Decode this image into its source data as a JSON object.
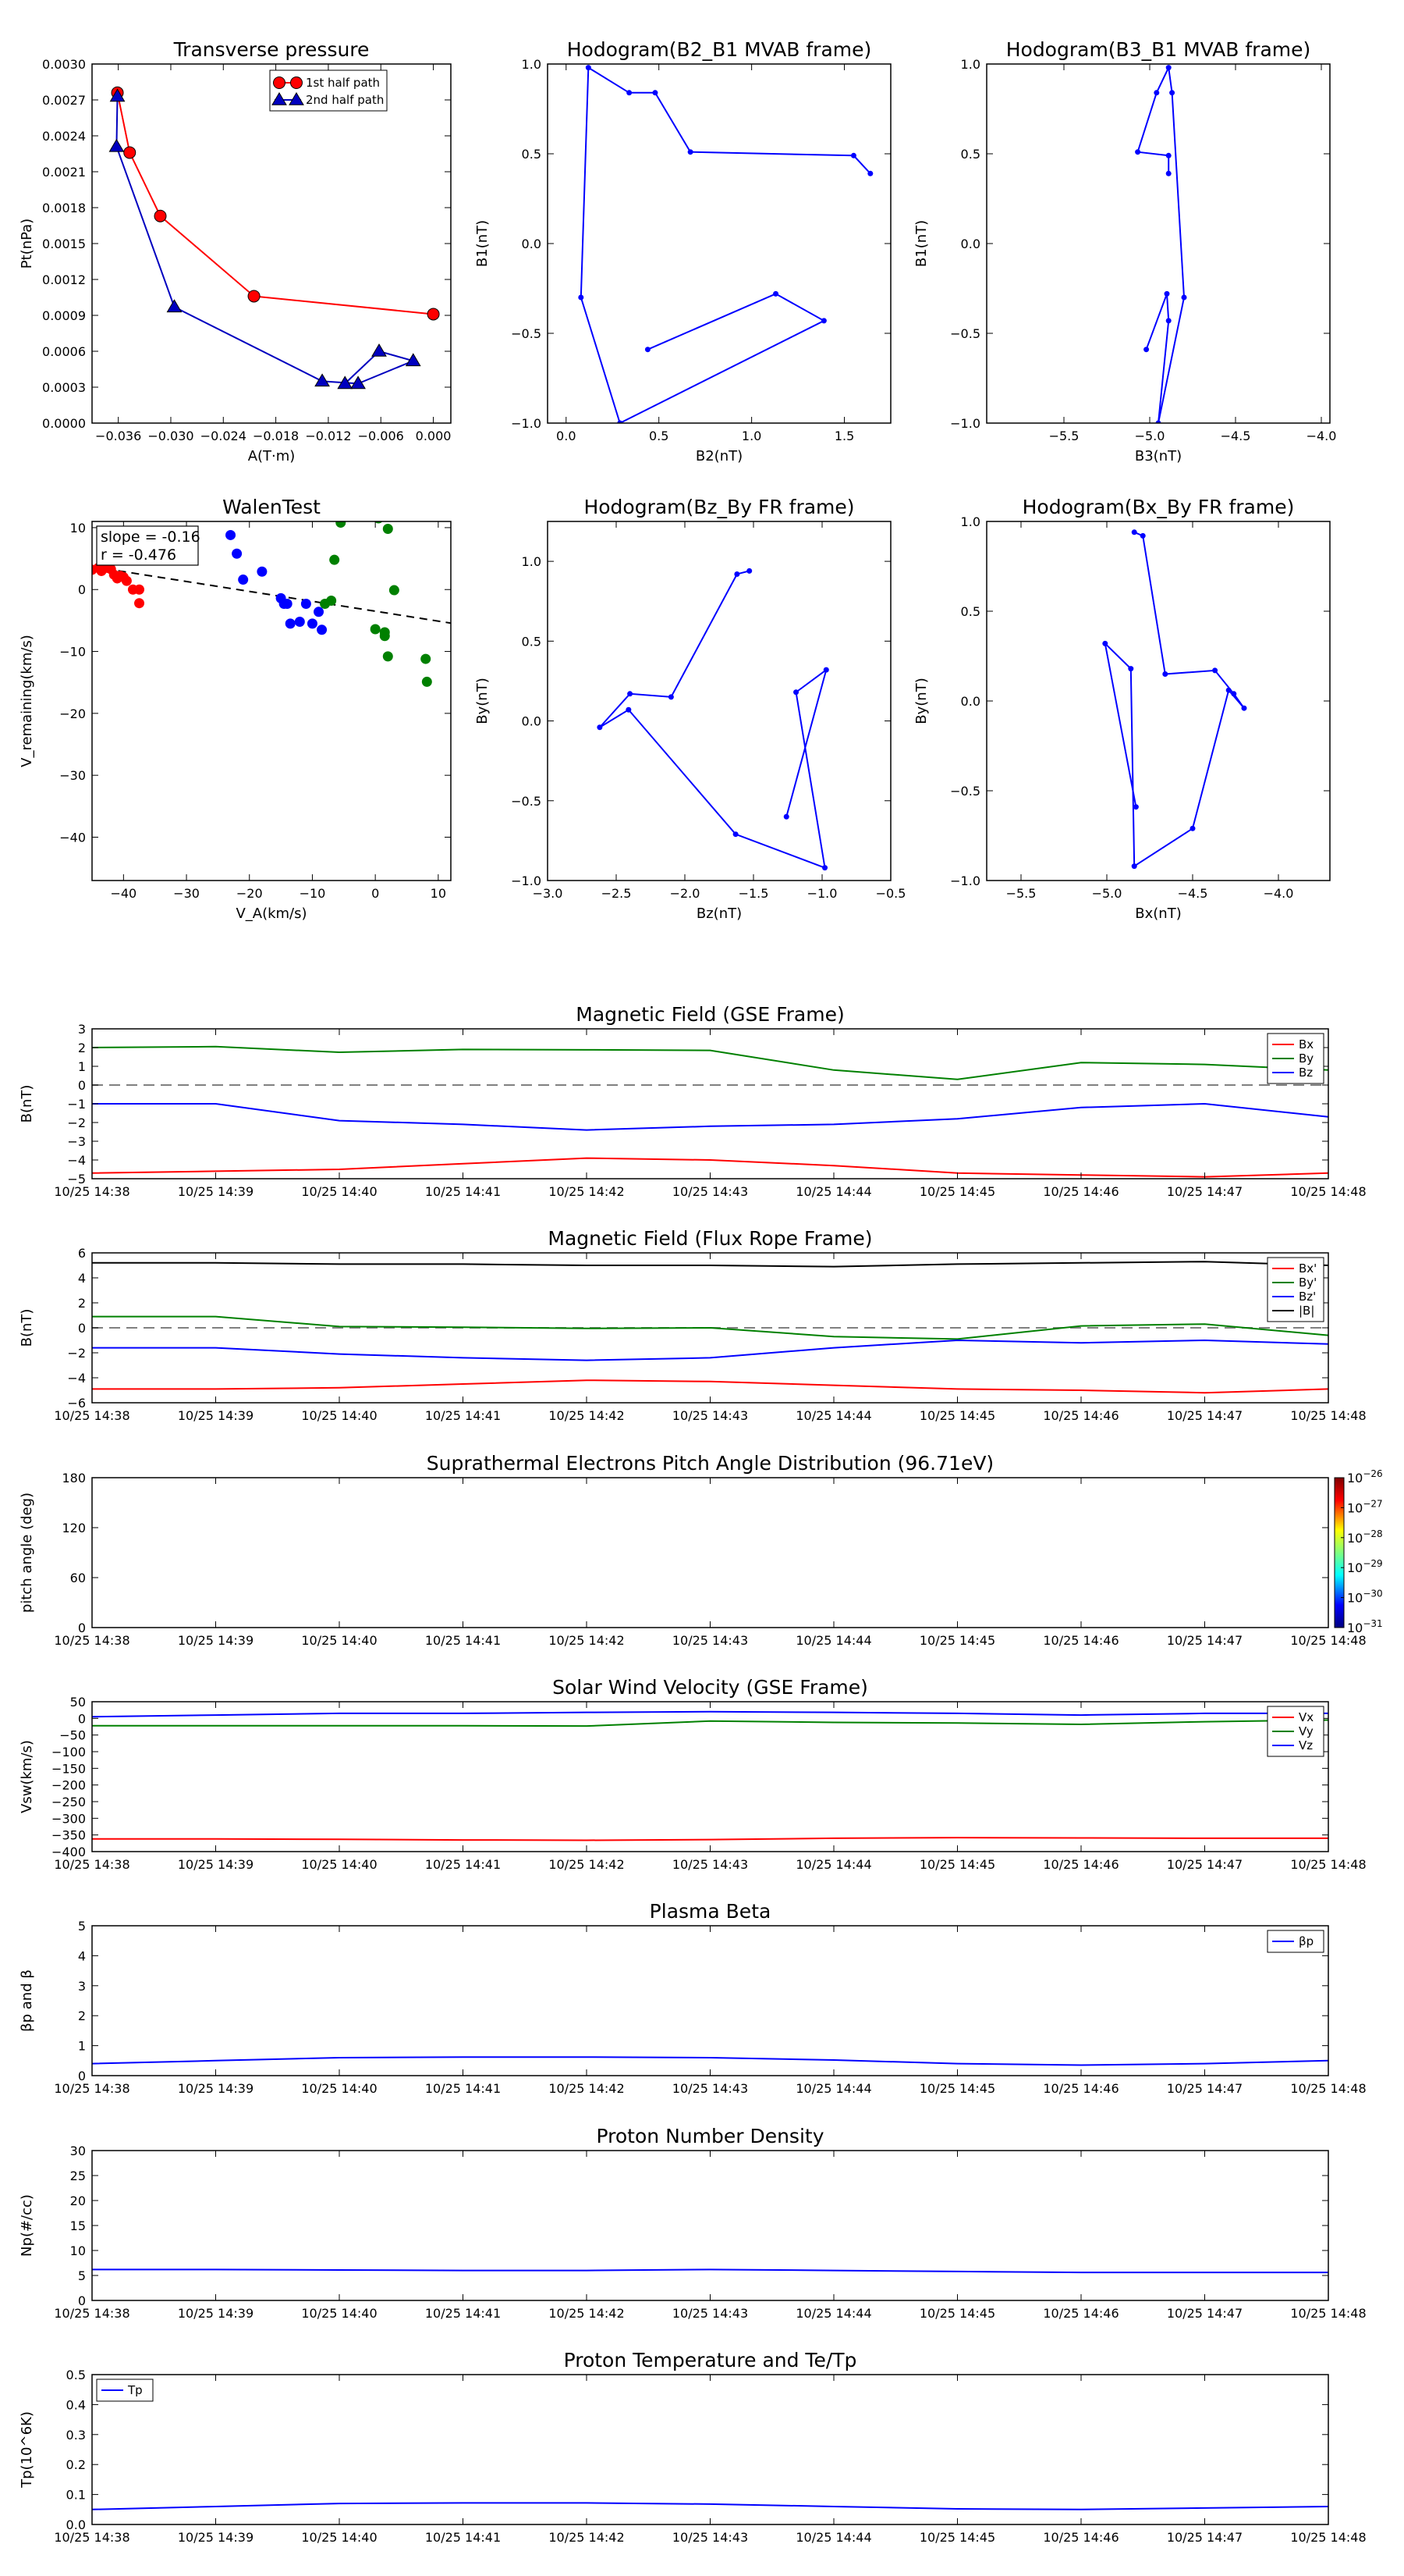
{
  "time_axis": {
    "ticks": [
      "10/25 14:38",
      "10/25 14:39",
      "10/25 14:40",
      "10/25 14:41",
      "10/25 14:42",
      "10/25 14:43",
      "10/25 14:44",
      "10/25 14:45",
      "10/25 14:46",
      "10/25 14:47",
      "10/25 14:48"
    ]
  },
  "chart_data": [
    {
      "id": "transverse_pressure",
      "type": "line",
      "title": "Transverse pressure",
      "xlabel": "A(T·m)",
      "ylabel": "Pt(nPa)",
      "xlim": [
        -0.039,
        0.002
      ],
      "ylim": [
        0,
        0.003
      ],
      "xticks": [
        -0.036,
        -0.03,
        -0.024,
        -0.018,
        -0.012,
        -0.006,
        0.0
      ],
      "xtick_labels": [
        "−0.036",
        "−0.030",
        "−0.024",
        "−0.018",
        "−0.012",
        "−0.006",
        "0.000"
      ],
      "yticks": [
        0,
        0.0003,
        0.0006,
        0.0009,
        0.0012,
        0.0015,
        0.0018,
        0.0021,
        0.0024,
        0.0027,
        0.003
      ],
      "ytick_labels": [
        "0.0000",
        "0.0003",
        "0.0006",
        "0.0009",
        "0.0012",
        "0.0015",
        "0.0018",
        "0.0021",
        "0.0024",
        "0.0027",
        "0.0030"
      ],
      "legend": "top-right",
      "series": [
        {
          "name": "1st half path",
          "color": "#ff0000",
          "marker": "circle",
          "x": [
            -0.0361,
            -0.0347,
            -0.0312,
            -0.0205,
            0.0
          ],
          "y": [
            0.00276,
            0.00226,
            0.00173,
            0.00106,
            0.00091
          ]
        },
        {
          "name": "2nd half path",
          "color": "#0000bf",
          "marker": "triangle",
          "x": [
            -0.0361,
            -0.0362,
            -0.0296,
            -0.0127,
            -0.0086,
            -0.0023,
            -0.0062,
            -0.0101
          ],
          "y": [
            0.00273,
            0.00231,
            0.00097,
            0.00035,
            0.00033,
            0.00052,
            0.0006,
            0.00033
          ]
        }
      ]
    },
    {
      "id": "hodo_b2_b1",
      "type": "line",
      "title": "Hodogram(B2_B1 MVAB frame)",
      "xlabel": "B2(nT)",
      "ylabel": "B1(nT)",
      "xlim": [
        -0.1,
        1.75
      ],
      "ylim": [
        -1.0,
        1.0
      ],
      "xticks": [
        0.0,
        0.5,
        1.0,
        1.5
      ],
      "xtick_labels": [
        "0.0",
        "0.5",
        "1.0",
        "1.5"
      ],
      "yticks": [
        -1.0,
        -0.5,
        0.0,
        0.5,
        1.0
      ],
      "ytick_labels": [
        "−1.0",
        "−0.5",
        "0.0",
        "0.5",
        "1.0"
      ],
      "series": [
        {
          "color": "#0000ff",
          "marker": "dot",
          "x": [
            1.64,
            1.55,
            0.67,
            0.48,
            0.34,
            0.12,
            0.08,
            0.29,
            1.39,
            1.13,
            0.44
          ],
          "y": [
            0.39,
            0.49,
            0.51,
            0.84,
            0.84,
            0.98,
            -0.3,
            -1.0,
            -0.43,
            -0.28,
            -0.59
          ]
        }
      ]
    },
    {
      "id": "hodo_b3_b1",
      "type": "line",
      "title": "Hodogram(B3_B1 MVAB frame)",
      "xlabel": "B3(nT)",
      "ylabel": "B1(nT)",
      "xlim": [
        -5.95,
        -3.95
      ],
      "ylim": [
        -1.0,
        1.0
      ],
      "xticks": [
        -5.5,
        -5.0,
        -4.5,
        -4.0
      ],
      "xtick_labels": [
        "−5.5",
        "−5.0",
        "−4.5",
        "−4.0"
      ],
      "yticks": [
        -1.0,
        -0.5,
        0.0,
        0.5,
        1.0
      ],
      "ytick_labels": [
        "−1.0",
        "−0.5",
        "0.0",
        "0.5",
        "1.0"
      ],
      "series": [
        {
          "color": "#0000ff",
          "marker": "dot",
          "x": [
            -4.89,
            -4.89,
            -5.07,
            -4.96,
            -4.89,
            -4.87,
            -4.8,
            -4.95,
            -4.89,
            -4.9,
            -5.02
          ],
          "y": [
            0.39,
            0.49,
            0.51,
            0.84,
            0.98,
            0.84,
            -0.3,
            -1.0,
            -0.43,
            -0.28,
            -0.59
          ]
        }
      ]
    },
    {
      "id": "walen_test",
      "type": "scatter",
      "title": "WalenTest",
      "xlabel": "V_A(km/s)",
      "ylabel": "V_remaining(km/s)",
      "xlim": [
        -45,
        12
      ],
      "ylim": [
        -47,
        11
      ],
      "xticks": [
        -40,
        -30,
        -20,
        -10,
        0,
        10
      ],
      "xtick_labels": [
        "−40",
        "−30",
        "−20",
        "−10",
        "0",
        "10"
      ],
      "yticks": [
        -40,
        -30,
        -20,
        -10,
        0,
        10
      ],
      "ytick_labels": [
        "−40",
        "−30",
        "−20",
        "−10",
        "0",
        "10"
      ],
      "annotation": [
        "slope = -0.16",
        "r = -0.476"
      ],
      "fit_line": {
        "slope": -0.16,
        "intercept": -3.5,
        "color": "#000000",
        "style": "dashed"
      },
      "series": [
        {
          "color": "#ff0000",
          "x": [
            -45,
            -44,
            -43.5,
            -43,
            -42.5,
            -42,
            -41.5,
            -41,
            -40.5,
            -40,
            -39.5,
            -38.5,
            -37.5,
            -37.5
          ],
          "y": [
            3.2,
            3.5,
            3.0,
            3.8,
            3.5,
            3.3,
            2.4,
            1.8,
            2.2,
            2.0,
            1.4,
            0.0,
            0.0,
            -2.2
          ]
        },
        {
          "color": "#0000ff",
          "x": [
            -23,
            -22,
            -21,
            -18,
            -15,
            -14.5,
            -14,
            -13.5,
            -12,
            -11,
            -10,
            -9,
            -8.5
          ],
          "y": [
            8.8,
            5.8,
            1.6,
            2.9,
            -1.4,
            -2.3,
            -2.3,
            -5.5,
            -5.2,
            -2.3,
            -5.5,
            -3.6,
            -6.5
          ]
        },
        {
          "color": "#008000",
          "x": [
            -6.5,
            -5.5,
            0.5,
            2,
            3,
            0,
            1.5,
            1.5,
            2,
            8,
            8.2,
            -8,
            -7
          ],
          "y": [
            4.8,
            10.8,
            11.5,
            9.8,
            -0.1,
            -6.4,
            -7.5,
            -6.9,
            -10.8,
            -11.2,
            -14.9,
            -2.3,
            -1.8
          ]
        }
      ]
    },
    {
      "id": "hodo_bz_by",
      "type": "line",
      "title": "Hodogram(Bz_By FR frame)",
      "xlabel": "Bz(nT)",
      "ylabel": "By(nT)",
      "xlim": [
        -3.0,
        -0.5
      ],
      "ylim": [
        -1.0,
        1.25
      ],
      "xticks": [
        -3.0,
        -2.5,
        -2.0,
        -1.5,
        -1.0,
        -0.5
      ],
      "xtick_labels": [
        "−3.0",
        "−2.5",
        "−2.0",
        "−1.5",
        "−1.0",
        "−0.5"
      ],
      "yticks": [
        -1.0,
        -0.5,
        0.0,
        0.5,
        1.0
      ],
      "ytick_labels": [
        "−1.0",
        "−0.5",
        "0.0",
        "0.5",
        "1.0"
      ],
      "series": [
        {
          "color": "#0000ff",
          "marker": "dot",
          "x": [
            -1.53,
            -1.62,
            -2.1,
            -2.4,
            -2.62,
            -2.41,
            -1.63,
            -0.98,
            -1.19,
            -0.97,
            -1.26
          ],
          "y": [
            0.94,
            0.92,
            0.15,
            0.17,
            -0.04,
            0.07,
            -0.71,
            -0.92,
            0.18,
            0.32,
            -0.6
          ]
        }
      ]
    },
    {
      "id": "hodo_bx_by",
      "type": "line",
      "title": "Hodogram(Bx_By FR frame)",
      "xlabel": "Bx(nT)",
      "ylabel": "By(nT)",
      "xlim": [
        -5.7,
        -3.7
      ],
      "ylim": [
        -1.0,
        1.0
      ],
      "xticks": [
        -5.5,
        -5.0,
        -4.5,
        -4.0
      ],
      "xtick_labels": [
        "−5.5",
        "−5.0",
        "−4.5",
        "−4.0"
      ],
      "yticks": [
        -1.0,
        -0.5,
        0.0,
        0.5,
        1.0
      ],
      "ytick_labels": [
        "−1.0",
        "−0.5",
        "0.0",
        "0.5",
        "1.0"
      ],
      "series": [
        {
          "color": "#0000ff",
          "marker": "dot",
          "x": [
            -4.84,
            -4.79,
            -4.66,
            -4.37,
            -4.26,
            -4.2,
            -4.29,
            -4.5,
            -4.84,
            -4.86,
            -5.01,
            -4.83
          ],
          "y": [
            0.94,
            0.92,
            0.15,
            0.17,
            0.04,
            -0.04,
            0.06,
            -0.71,
            -0.92,
            0.18,
            0.32,
            -0.59
          ]
        }
      ]
    },
    {
      "id": "mag_gse",
      "type": "line",
      "title": "Magnetic Field (GSE Frame)",
      "ylabel": "B(nT)",
      "ylim": [
        -5,
        3
      ],
      "yticks": [
        -5,
        -4,
        -3,
        -2,
        -1,
        0,
        1,
        2,
        3
      ],
      "ytick_labels": [
        "−5",
        "−4",
        "−3",
        "−2",
        "−1",
        "0",
        "1",
        "2",
        "3"
      ],
      "legend": "top-right",
      "zero_line": true,
      "series": [
        {
          "name": "Bx",
          "color": "#ff0000",
          "values": [
            -4.7,
            -4.6,
            -4.5,
            -4.2,
            -3.9,
            -4.0,
            -4.3,
            -4.7,
            -4.8,
            -4.9,
            -4.7
          ]
        },
        {
          "name": "By",
          "color": "#008000",
          "values": [
            2.0,
            2.05,
            1.75,
            1.9,
            1.88,
            1.85,
            0.8,
            0.3,
            1.2,
            1.1,
            0.8
          ]
        },
        {
          "name": "Bz",
          "color": "#0000ff",
          "values": [
            -1.0,
            -1.0,
            -1.9,
            -2.1,
            -2.4,
            -2.2,
            -2.1,
            -1.8,
            -1.2,
            -1.0,
            -1.7
          ]
        }
      ]
    },
    {
      "id": "mag_fr",
      "type": "line",
      "title": "Magnetic Field (Flux Rope Frame)",
      "ylabel": "B(nT)",
      "ylim": [
        -6,
        6
      ],
      "yticks": [
        -6,
        -4,
        -2,
        0,
        2,
        4,
        6
      ],
      "ytick_labels": [
        "−6",
        "−4",
        "−2",
        "0",
        "2",
        "4",
        "6"
      ],
      "legend": "top-right",
      "zero_line": true,
      "series": [
        {
          "name": "Bx'",
          "color": "#ff0000",
          "values": [
            -4.9,
            -4.9,
            -4.8,
            -4.5,
            -4.2,
            -4.3,
            -4.6,
            -4.9,
            -5.0,
            -5.2,
            -4.9
          ]
        },
        {
          "name": "By'",
          "color": "#008000",
          "values": [
            0.9,
            0.9,
            0.1,
            0.05,
            -0.05,
            0.0,
            -0.7,
            -0.9,
            0.15,
            0.3,
            -0.6
          ]
        },
        {
          "name": "Bz'",
          "color": "#0000ff",
          "values": [
            -1.6,
            -1.6,
            -2.1,
            -2.4,
            -2.6,
            -2.4,
            -1.6,
            -1.0,
            -1.2,
            -1.0,
            -1.3
          ]
        },
        {
          "name": "|B|",
          "color": "#000000",
          "values": [
            5.2,
            5.2,
            5.1,
            5.1,
            5.0,
            5.0,
            4.9,
            5.1,
            5.2,
            5.3,
            5.0
          ]
        }
      ]
    },
    {
      "id": "pad",
      "type": "heatmap",
      "title": "Suprathermal Electrons Pitch Angle Distribution (96.71eV)",
      "ylabel": "pitch angle (deg)",
      "ylim": [
        0,
        180
      ],
      "yticks": [
        0,
        60,
        120,
        180
      ],
      "ytick_labels": [
        "0",
        "60",
        "120",
        "180"
      ],
      "colorbar": {
        "ticks": [
          "10^-26",
          "10^-27",
          "10^-28",
          "10^-29",
          "10^-30",
          "10^-31"
        ]
      },
      "values": []
    },
    {
      "id": "vsw",
      "type": "line",
      "title": "Solar Wind Velocity (GSE Frame)",
      "ylabel": "Vsw(km/s)",
      "ylim": [
        -400,
        50
      ],
      "yticks": [
        -400,
        -350,
        -300,
        -250,
        -200,
        -150,
        -100,
        -50,
        0,
        50
      ],
      "ytick_labels": [
        "−400",
        "−350",
        "−300",
        "−250",
        "−200",
        "−150",
        "−100",
        "−50",
        "0",
        "50"
      ],
      "legend": "top-right",
      "series": [
        {
          "name": "Vx",
          "color": "#ff0000",
          "values": [
            -362,
            -362,
            -363,
            -365,
            -366,
            -364,
            -360,
            -358,
            -359,
            -360,
            -360
          ]
        },
        {
          "name": "Vy",
          "color": "#008000",
          "values": [
            -22,
            -22,
            -22,
            -22,
            -23,
            -8,
            -12,
            -14,
            -18,
            -10,
            -5
          ]
        },
        {
          "name": "Vz",
          "color": "#0000ff",
          "values": [
            5,
            10,
            15,
            15,
            18,
            20,
            18,
            15,
            10,
            15,
            15
          ]
        }
      ]
    },
    {
      "id": "beta",
      "type": "line",
      "title": "Plasma Beta",
      "ylabel": "βp and β",
      "ylim": [
        0,
        5
      ],
      "yticks": [
        0,
        1,
        2,
        3,
        4,
        5
      ],
      "ytick_labels": [
        "0",
        "1",
        "2",
        "3",
        "4",
        "5"
      ],
      "legend": "top-right",
      "series": [
        {
          "name": "βp",
          "color": "#0000ff",
          "values": [
            0.4,
            0.5,
            0.6,
            0.62,
            0.62,
            0.6,
            0.52,
            0.4,
            0.35,
            0.4,
            0.5
          ]
        }
      ]
    },
    {
      "id": "np",
      "type": "line",
      "title": "Proton Number Density",
      "ylabel": "Np(#/cc)",
      "ylim": [
        0,
        30
      ],
      "yticks": [
        0,
        5,
        10,
        15,
        20,
        25,
        30
      ],
      "ytick_labels": [
        "0",
        "5",
        "10",
        "15",
        "20",
        "25",
        "30"
      ],
      "series": [
        {
          "color": "#0000ff",
          "values": [
            6.2,
            6.2,
            6.1,
            6.0,
            6.0,
            6.2,
            6.0,
            5.8,
            5.6,
            5.6,
            5.6
          ]
        }
      ]
    },
    {
      "id": "tp",
      "type": "line",
      "title": "Proton Temperature and Te/Tp",
      "ylabel": "Tp(10^6K)",
      "ylim": [
        0,
        0.5
      ],
      "yticks": [
        0,
        0.1,
        0.2,
        0.3,
        0.4,
        0.5
      ],
      "ytick_labels": [
        "0.0",
        "0.1",
        "0.2",
        "0.3",
        "0.4",
        "0.5"
      ],
      "legend": "top-left",
      "series": [
        {
          "name": "Tp",
          "color": "#0000ff",
          "values": [
            0.05,
            0.06,
            0.07,
            0.072,
            0.072,
            0.068,
            0.06,
            0.052,
            0.05,
            0.055,
            0.06
          ]
        }
      ]
    }
  ]
}
